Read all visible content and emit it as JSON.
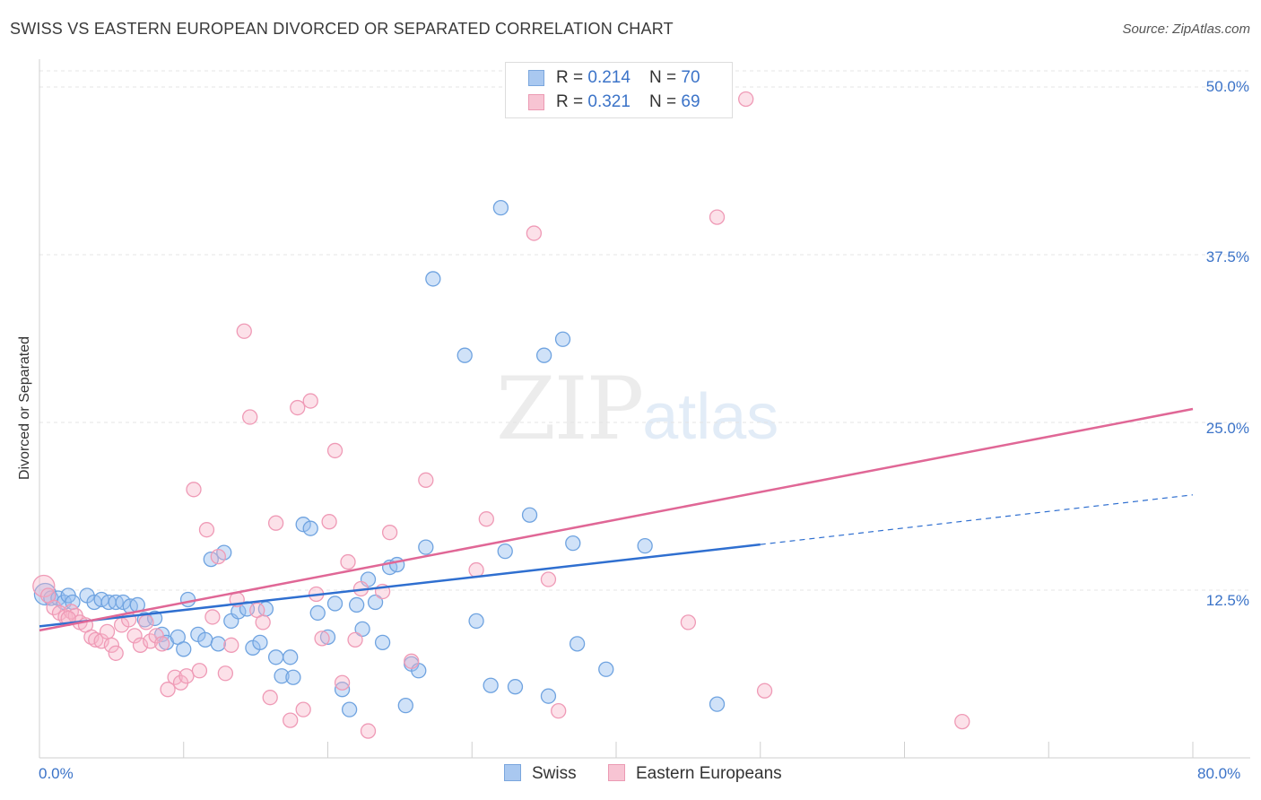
{
  "title": "SWISS VS EASTERN EUROPEAN DIVORCED OR SEPARATED CORRELATION CHART",
  "source": "Source: ZipAtlas.com",
  "watermark": {
    "zip": "ZIP",
    "atlas": "atlas"
  },
  "legend": {
    "rows": [
      {
        "r_label": "R = ",
        "r_value": "0.214",
        "n_label": "N = ",
        "n_value": "70",
        "color": "#a9c8f0",
        "edge": "#7aa6dd"
      },
      {
        "r_label": "R = ",
        "r_value": "0.321",
        "n_label": "N = ",
        "n_value": "69",
        "color": "#f7c4d3",
        "edge": "#eb9ab3"
      }
    ]
  },
  "bottom_legend": [
    {
      "label": "Swiss",
      "color": "#a9c8f0",
      "edge": "#7aa6dd"
    },
    {
      "label": "Eastern Europeans",
      "color": "#f7c4d3",
      "edge": "#eb9ab3"
    }
  ],
  "chart_data": {
    "type": "scatter",
    "title": "SWISS VS EASTERN EUROPEAN DIVORCED OR SEPARATED CORRELATION CHART",
    "xlabel": "",
    "ylabel": "Divorced or Separated",
    "xlim": [
      0,
      80
    ],
    "ylim": [
      0,
      50
    ],
    "x_tick_labels": [
      "0.0%",
      "80.0%"
    ],
    "y_ticks": [
      12.5,
      25.0,
      37.5,
      50.0
    ],
    "y_tick_labels": [
      "12.5%",
      "25.0%",
      "37.5%",
      "50.0%"
    ],
    "grid": true,
    "legend_position": "top-center",
    "series": [
      {
        "name": "Swiss",
        "color": "#6fa3e0",
        "trend_color": "#2f6fd0",
        "trend": {
          "x0": 0,
          "y0": 9.8,
          "x1": 50,
          "y1": 15.9,
          "dash_to_x": 80,
          "dash_to_y": 19.6
        },
        "points": [
          [
            0.4,
            12.2
          ],
          [
            0.8,
            11.9
          ],
          [
            1.3,
            11.9
          ],
          [
            1.7,
            11.6
          ],
          [
            2.0,
            12.1
          ],
          [
            2.3,
            11.6
          ],
          [
            3.3,
            12.1
          ],
          [
            3.8,
            11.6
          ],
          [
            4.3,
            11.8
          ],
          [
            4.8,
            11.6
          ],
          [
            5.3,
            11.6
          ],
          [
            5.8,
            11.6
          ],
          [
            6.3,
            11.3
          ],
          [
            6.8,
            11.4
          ],
          [
            7.3,
            10.3
          ],
          [
            8.0,
            10.4
          ],
          [
            8.5,
            9.2
          ],
          [
            8.8,
            8.6
          ],
          [
            9.6,
            9.0
          ],
          [
            10.0,
            8.1
          ],
          [
            10.3,
            11.8
          ],
          [
            11.0,
            9.2
          ],
          [
            11.5,
            8.8
          ],
          [
            11.9,
            14.8
          ],
          [
            12.4,
            8.5
          ],
          [
            12.8,
            15.3
          ],
          [
            13.3,
            10.2
          ],
          [
            13.8,
            10.9
          ],
          [
            14.4,
            11.1
          ],
          [
            14.8,
            8.2
          ],
          [
            15.3,
            8.6
          ],
          [
            15.7,
            11.1
          ],
          [
            16.4,
            7.5
          ],
          [
            16.8,
            6.1
          ],
          [
            17.4,
            7.5
          ],
          [
            17.6,
            6.0
          ],
          [
            18.3,
            17.4
          ],
          [
            18.8,
            17.1
          ],
          [
            19.3,
            10.8
          ],
          [
            20.0,
            9.0
          ],
          [
            20.5,
            11.5
          ],
          [
            21.0,
            5.1
          ],
          [
            21.5,
            3.6
          ],
          [
            22.0,
            11.4
          ],
          [
            22.4,
            9.6
          ],
          [
            22.8,
            13.3
          ],
          [
            23.3,
            11.6
          ],
          [
            23.8,
            8.6
          ],
          [
            24.3,
            14.2
          ],
          [
            24.8,
            14.4
          ],
          [
            25.4,
            3.9
          ],
          [
            25.8,
            7.0
          ],
          [
            26.3,
            6.5
          ],
          [
            26.8,
            15.7
          ],
          [
            27.3,
            35.7
          ],
          [
            29.5,
            30.0
          ],
          [
            30.3,
            10.2
          ],
          [
            31.3,
            5.4
          ],
          [
            32.0,
            41.0
          ],
          [
            32.3,
            15.4
          ],
          [
            33.0,
            5.3
          ],
          [
            34.0,
            18.1
          ],
          [
            35.0,
            30.0
          ],
          [
            35.3,
            4.6
          ],
          [
            36.3,
            31.2
          ],
          [
            37.0,
            16.0
          ],
          [
            37.3,
            8.5
          ],
          [
            39.3,
            6.6
          ],
          [
            42.0,
            15.8
          ],
          [
            47.0,
            4.0
          ]
        ]
      },
      {
        "name": "Eastern Europeans",
        "color": "#f4a5bd",
        "trend_color": "#e06796",
        "trend": {
          "x0": 0,
          "y0": 9.5,
          "x1": 80,
          "y1": 26.0
        },
        "points": [
          [
            0.3,
            12.8
          ],
          [
            0.6,
            12.1
          ],
          [
            1.0,
            11.2
          ],
          [
            1.4,
            10.8
          ],
          [
            1.8,
            10.5
          ],
          [
            2.2,
            10.9
          ],
          [
            2.5,
            10.6
          ],
          [
            2.8,
            10.1
          ],
          [
            3.2,
            9.9
          ],
          [
            3.6,
            9.0
          ],
          [
            3.9,
            8.8
          ],
          [
            4.3,
            8.7
          ],
          [
            4.7,
            9.4
          ],
          [
            5.0,
            8.4
          ],
          [
            5.3,
            7.8
          ],
          [
            5.7,
            9.9
          ],
          [
            6.2,
            10.3
          ],
          [
            6.6,
            9.1
          ],
          [
            7.0,
            8.4
          ],
          [
            7.4,
            10.1
          ],
          [
            7.7,
            8.7
          ],
          [
            8.1,
            9.1
          ],
          [
            8.5,
            8.5
          ],
          [
            8.9,
            5.1
          ],
          [
            9.4,
            6.0
          ],
          [
            9.8,
            5.6
          ],
          [
            10.2,
            6.1
          ],
          [
            10.7,
            20.0
          ],
          [
            11.1,
            6.5
          ],
          [
            11.6,
            17.0
          ],
          [
            12.0,
            10.5
          ],
          [
            12.4,
            15.0
          ],
          [
            12.9,
            6.3
          ],
          [
            13.3,
            8.4
          ],
          [
            13.7,
            11.8
          ],
          [
            14.2,
            31.8
          ],
          [
            14.6,
            25.4
          ],
          [
            15.1,
            11.0
          ],
          [
            15.5,
            10.1
          ],
          [
            16.0,
            4.5
          ],
          [
            16.4,
            17.5
          ],
          [
            17.4,
            2.8
          ],
          [
            17.9,
            26.1
          ],
          [
            18.3,
            3.6
          ],
          [
            18.8,
            26.6
          ],
          [
            19.2,
            12.2
          ],
          [
            19.6,
            8.9
          ],
          [
            20.1,
            17.6
          ],
          [
            20.5,
            22.9
          ],
          [
            21.0,
            5.6
          ],
          [
            21.4,
            14.6
          ],
          [
            21.9,
            8.8
          ],
          [
            22.3,
            12.6
          ],
          [
            22.8,
            2.0
          ],
          [
            23.8,
            12.4
          ],
          [
            24.3,
            16.8
          ],
          [
            25.8,
            7.2
          ],
          [
            26.8,
            20.7
          ],
          [
            30.3,
            14.0
          ],
          [
            31.0,
            17.8
          ],
          [
            34.3,
            39.1
          ],
          [
            35.3,
            13.3
          ],
          [
            36.0,
            3.5
          ],
          [
            45.0,
            10.1
          ],
          [
            47.0,
            40.3
          ],
          [
            49.0,
            49.1
          ],
          [
            50.3,
            5.0
          ],
          [
            64.0,
            2.7
          ],
          [
            2.0,
            10.4
          ]
        ]
      }
    ]
  }
}
